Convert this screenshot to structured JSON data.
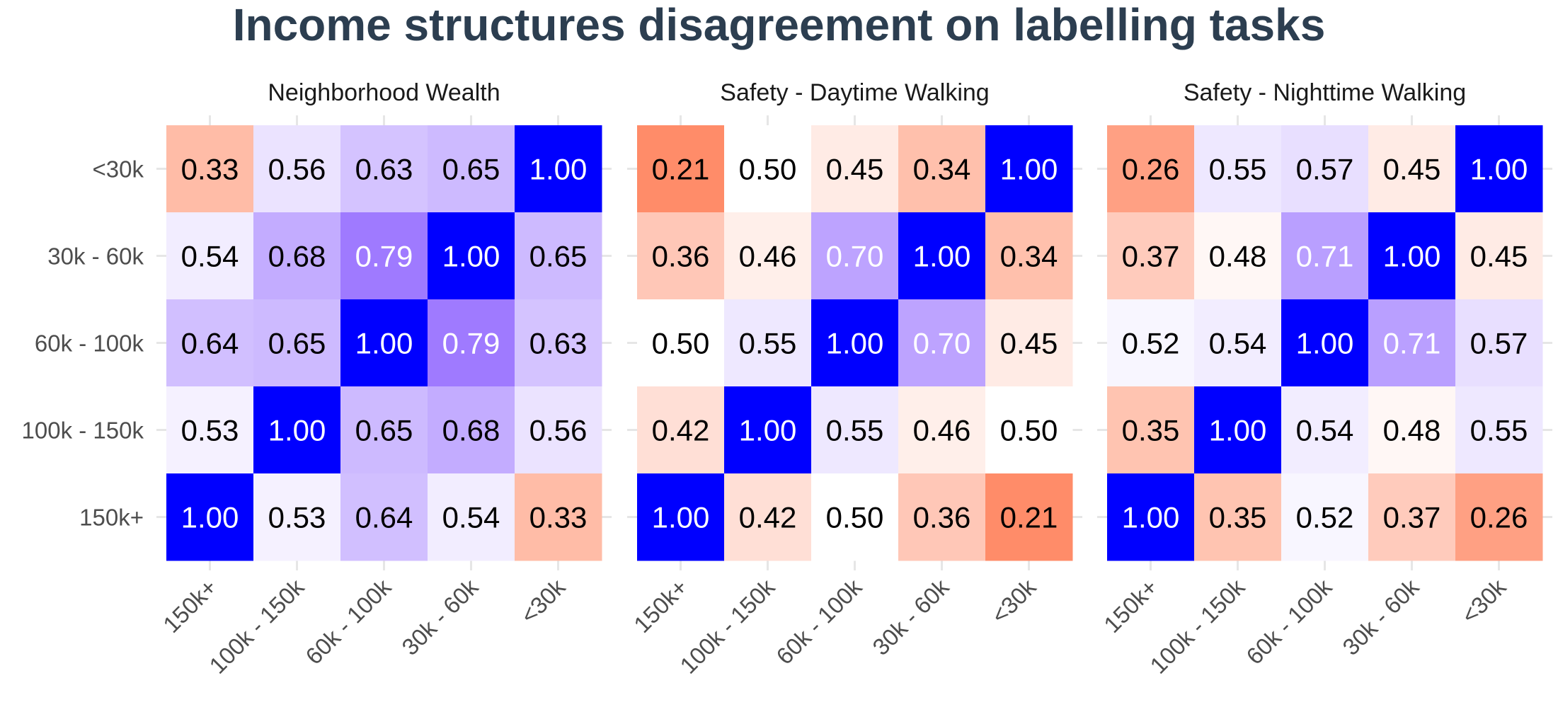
{
  "title": "Income structures disagreement on labelling tasks",
  "colors": {
    "low": "#ff8c69",
    "mid": "#ffffff",
    "high_purple": "#9f7aff",
    "one": "#0000ff",
    "title": "#2c3e50",
    "grid": "#e6e6e6"
  },
  "chart_data": [
    {
      "type": "heatmap",
      "title": "Neighborhood Wealth",
      "x_categories": [
        "150k+",
        "100k - 150k",
        "60k - 100k",
        "30k - 60k",
        "<30k"
      ],
      "y_categories": [
        "<30k",
        "30k - 60k",
        "60k - 100k",
        "100k - 150k",
        "150k+"
      ],
      "values": [
        [
          "0.33",
          "0.56",
          "0.63",
          "0.65",
          "1.00"
        ],
        [
          "0.54",
          "0.68",
          "0.79",
          "1.00",
          "0.65"
        ],
        [
          "0.64",
          "0.65",
          "1.00",
          "0.79",
          "0.63"
        ],
        [
          "0.53",
          "1.00",
          "0.65",
          "0.68",
          "0.56"
        ],
        [
          "1.00",
          "0.53",
          "0.64",
          "0.54",
          "0.33"
        ]
      ]
    },
    {
      "type": "heatmap",
      "title": "Safety - Daytime Walking",
      "x_categories": [
        "150k+",
        "100k - 150k",
        "60k - 100k",
        "30k - 60k",
        "<30k"
      ],
      "y_categories": [
        "<30k",
        "30k - 60k",
        "60k - 100k",
        "100k - 150k",
        "150k+"
      ],
      "values": [
        [
          "0.21",
          "0.50",
          "0.45",
          "0.34",
          "1.00"
        ],
        [
          "0.36",
          "0.46",
          "0.70",
          "1.00",
          "0.34"
        ],
        [
          "0.50",
          "0.55",
          "1.00",
          "0.70",
          "0.45"
        ],
        [
          "0.42",
          "1.00",
          "0.55",
          "0.46",
          "0.50"
        ],
        [
          "1.00",
          "0.42",
          "0.50",
          "0.36",
          "0.21"
        ]
      ]
    },
    {
      "type": "heatmap",
      "title": "Safety - Nighttime Walking",
      "x_categories": [
        "150k+",
        "100k - 150k",
        "60k - 100k",
        "30k - 60k",
        "<30k"
      ],
      "y_categories": [
        "<30k",
        "30k - 60k",
        "60k - 100k",
        "100k - 150k",
        "150k+"
      ],
      "values": [
        [
          "0.26",
          "0.55",
          "0.57",
          "0.45",
          "1.00"
        ],
        [
          "0.37",
          "0.48",
          "0.71",
          "1.00",
          "0.45"
        ],
        [
          "0.52",
          "0.54",
          "1.00",
          "0.71",
          "0.57"
        ],
        [
          "0.35",
          "1.00",
          "0.54",
          "0.48",
          "0.55"
        ],
        [
          "1.00",
          "0.35",
          "0.52",
          "0.37",
          "0.26"
        ]
      ]
    }
  ]
}
